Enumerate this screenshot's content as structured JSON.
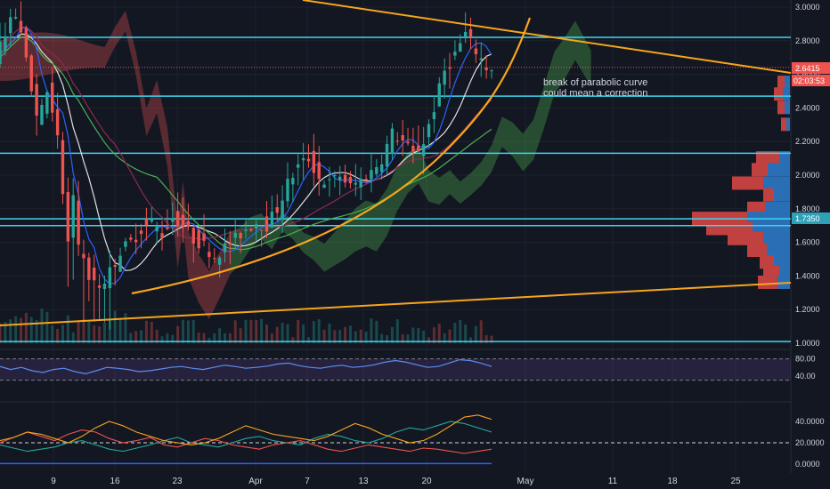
{
  "chart_data": {
    "type": "candlestick",
    "x_tick_labels": [
      "9",
      "16",
      "23",
      "Apr",
      "7",
      "13",
      "20",
      "May",
      "11",
      "18",
      "25"
    ],
    "price_axis": {
      "ticks": [
        "3.0000",
        "2.8000",
        "2.6000",
        "2.4000",
        "2.2000",
        "2.0000",
        "1.8000",
        "1.6000",
        "1.4000",
        "1.2000",
        "1.0000"
      ],
      "range": [
        0.99,
        3.05
      ]
    },
    "current_price": "2.6415",
    "countdown": "02:03:53",
    "volume_profile_poc": "1.7350",
    "horizontal_levels": [
      2.82,
      2.47,
      2.13,
      1.74,
      1.7,
      1.01
    ],
    "annotation": {
      "line1": "break of parabolic curve",
      "line2": "could mean a correction"
    },
    "price_path": [
      [
        0,
        2.72
      ],
      [
        2,
        2.85
      ],
      [
        4,
        2.95
      ],
      [
        6,
        2.7
      ],
      [
        8,
        2.35
      ],
      [
        10,
        2.5
      ],
      [
        12,
        2.2
      ],
      [
        14,
        1.6
      ],
      [
        15,
        1.85
      ],
      [
        16,
        1.55
      ],
      [
        18,
        1.4
      ],
      [
        20,
        1.3
      ],
      [
        22,
        1.42
      ],
      [
        24,
        1.55
      ],
      [
        26,
        1.6
      ],
      [
        28,
        1.68
      ],
      [
        30,
        1.72
      ],
      [
        32,
        1.65
      ],
      [
        34,
        1.75
      ],
      [
        36,
        1.7
      ],
      [
        38,
        1.62
      ],
      [
        40,
        1.58
      ],
      [
        42,
        1.52
      ],
      [
        44,
        1.57
      ],
      [
        46,
        1.62
      ],
      [
        48,
        1.68
      ],
      [
        50,
        1.72
      ],
      [
        52,
        1.7
      ],
      [
        54,
        1.8
      ],
      [
        56,
        1.95
      ],
      [
        58,
        2.05
      ],
      [
        60,
        2.1
      ],
      [
        62,
        1.98
      ],
      [
        64,
        1.95
      ],
      [
        66,
        2.0
      ],
      [
        68,
        1.93
      ],
      [
        70,
        1.97
      ],
      [
        72,
        2.02
      ],
      [
        74,
        2.1
      ],
      [
        76,
        2.25
      ],
      [
        78,
        2.2
      ],
      [
        80,
        2.12
      ],
      [
        82,
        2.2
      ],
      [
        84,
        2.4
      ],
      [
        86,
        2.62
      ],
      [
        88,
        2.72
      ],
      [
        90,
        2.84
      ],
      [
        92,
        2.74
      ],
      [
        94,
        2.64
      ]
    ],
    "rsi": {
      "ticks": [
        "80.00",
        "40.00"
      ],
      "values": [
        62,
        55,
        60,
        52,
        48,
        55,
        58,
        50,
        45,
        52,
        60,
        58,
        55,
        50,
        52,
        56,
        60,
        62,
        58,
        55,
        60,
        65,
        62,
        58,
        60,
        63,
        68,
        70,
        64,
        60,
        58,
        62,
        65,
        60,
        62,
        66,
        72,
        76,
        72,
        66,
        60,
        62,
        70,
        78,
        76,
        70,
        62
      ]
    },
    "dmi": {
      "ticks": [
        "40.0000",
        "20.0000",
        "0.0000"
      ],
      "adx": [
        22,
        25,
        30,
        28,
        24,
        20,
        26,
        34,
        40,
        36,
        30,
        26,
        22,
        20,
        18,
        20,
        24,
        30,
        36,
        32,
        28,
        26,
        24,
        22,
        26,
        32,
        38,
        34,
        28,
        24,
        20,
        22,
        28,
        36,
        44,
        46,
        42
      ],
      "plus_di": [
        18,
        15,
        12,
        14,
        16,
        20,
        22,
        18,
        14,
        12,
        15,
        18,
        22,
        25,
        20,
        18,
        16,
        20,
        24,
        26,
        22,
        20,
        18,
        24,
        28,
        26,
        22,
        20,
        24,
        30,
        34,
        32,
        36,
        40,
        38,
        34,
        30
      ],
      "minus_di": [
        20,
        25,
        30,
        26,
        22,
        28,
        32,
        30,
        24,
        20,
        22,
        25,
        18,
        16,
        20,
        24,
        22,
        18,
        16,
        14,
        18,
        20,
        22,
        18,
        14,
        12,
        15,
        18,
        16,
        14,
        12,
        15,
        14,
        12,
        10,
        12,
        14
      ]
    },
    "colors": {
      "background": "#131722",
      "up": "#26a69a",
      "down": "#ef5350",
      "level": "#3dd6f0",
      "trendline": "#f7a51c",
      "rsi": "#5b8def",
      "adx": "#f7a51c",
      "plus_di": "#26a69a",
      "minus_di": "#ef5350"
    }
  }
}
